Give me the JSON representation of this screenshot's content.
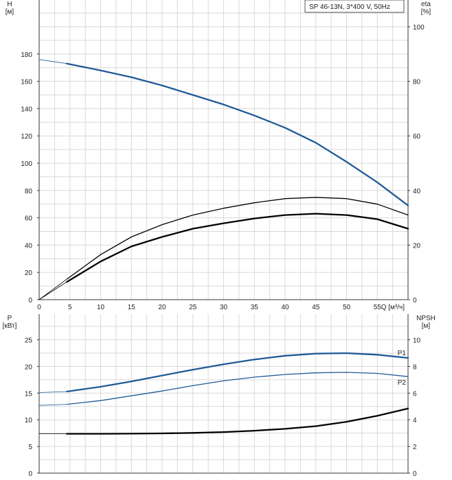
{
  "chart_data": [
    {
      "type": "line",
      "title": "SP 46-13N, 3*400 V, 50Hz",
      "y_left_label": "H\n[м]",
      "y_right_label": "eta\n[%]",
      "x_label": "Q [м³/ч]",
      "xlim": [
        0,
        60
      ],
      "ylim_left": [
        0,
        200
      ],
      "ylim_right": [
        0,
        100
      ],
      "grid": true,
      "x_ticks": [
        0,
        5,
        10,
        15,
        20,
        25,
        30,
        35,
        40,
        45,
        50,
        55
      ],
      "y_left_ticks": [
        0,
        20,
        40,
        60,
        80,
        100,
        120,
        140,
        160,
        180
      ],
      "y_right_ticks": [
        0,
        20,
        40,
        60,
        80,
        100
      ],
      "series": [
        {
          "key": "head",
          "axis": "left",
          "color": "#1f5a96",
          "extension_x": [
            0,
            4.5
          ],
          "extension_y": [
            176,
            173
          ],
          "x": [
            4.5,
            10,
            15,
            20,
            25,
            30,
            35,
            40,
            45,
            50,
            55,
            60
          ],
          "y": [
            173,
            168,
            163,
            157,
            150,
            143,
            135,
            126,
            115,
            101,
            86,
            69
          ]
        },
        {
          "key": "eta-upper",
          "axis": "left",
          "color": "#000000",
          "extension_x": [
            0,
            4.5
          ],
          "extension_y": [
            0,
            15
          ],
          "x": [
            4.5,
            10,
            15,
            20,
            25,
            30,
            35,
            40,
            45,
            50,
            55,
            60
          ],
          "y": [
            15,
            33,
            46,
            55,
            62,
            67,
            71,
            74,
            75,
            74,
            70,
            62
          ]
        },
        {
          "key": "eta-lower",
          "axis": "left",
          "color": "#000000",
          "extension_x": [
            0,
            4.5
          ],
          "extension_y": [
            0,
            13
          ],
          "x": [
            4.5,
            10,
            15,
            20,
            25,
            30,
            35,
            40,
            45,
            50,
            55,
            60
          ],
          "y": [
            13,
            28,
            39,
            46,
            52,
            56,
            59.5,
            62,
            63,
            62,
            59,
            52
          ]
        }
      ]
    },
    {
      "type": "line",
      "y_left_label": "P\n[кВт]",
      "y_right_label": "NPSH\n[м]",
      "xlim": [
        0,
        60
      ],
      "ylim_left": [
        0,
        27.5
      ],
      "ylim_right": [
        0,
        11
      ],
      "grid": true,
      "y_left_ticks": [
        0,
        5,
        10,
        15,
        20,
        25
      ],
      "y_right_ticks": [
        0,
        2,
        4,
        6,
        8,
        10
      ],
      "series": [
        {
          "key": "p1",
          "name": "P1",
          "axis": "left",
          "color": "#1f5a96",
          "extension_x": [
            0,
            4.5
          ],
          "extension_y": [
            15.1,
            15.3
          ],
          "x": [
            4.5,
            10,
            15,
            20,
            25,
            30,
            35,
            40,
            45,
            50,
            55,
            60
          ],
          "y": [
            15.3,
            16.2,
            17.2,
            18.3,
            19.4,
            20.4,
            21.3,
            22.0,
            22.4,
            22.5,
            22.2,
            21.6
          ]
        },
        {
          "key": "p2",
          "name": "P2",
          "axis": "left",
          "color": "#1f5a96",
          "extension_x": [
            0,
            4.5
          ],
          "extension_y": [
            12.7,
            12.9
          ],
          "x": [
            4.5,
            10,
            15,
            20,
            25,
            30,
            35,
            40,
            45,
            50,
            55,
            60
          ],
          "y": [
            12.9,
            13.6,
            14.5,
            15.4,
            16.4,
            17.3,
            18.0,
            18.5,
            18.8,
            18.9,
            18.7,
            18.1
          ]
        },
        {
          "key": "npsh",
          "axis": "right",
          "color": "#000000",
          "extension_x": [
            0,
            4.5
          ],
          "extension_y": [
            2.95,
            2.95
          ],
          "x": [
            4.5,
            10,
            15,
            20,
            25,
            30,
            35,
            40,
            45,
            50,
            55,
            60
          ],
          "y": [
            2.95,
            2.95,
            2.96,
            2.98,
            3.02,
            3.08,
            3.18,
            3.32,
            3.52,
            3.85,
            4.3,
            4.85
          ]
        }
      ]
    }
  ]
}
